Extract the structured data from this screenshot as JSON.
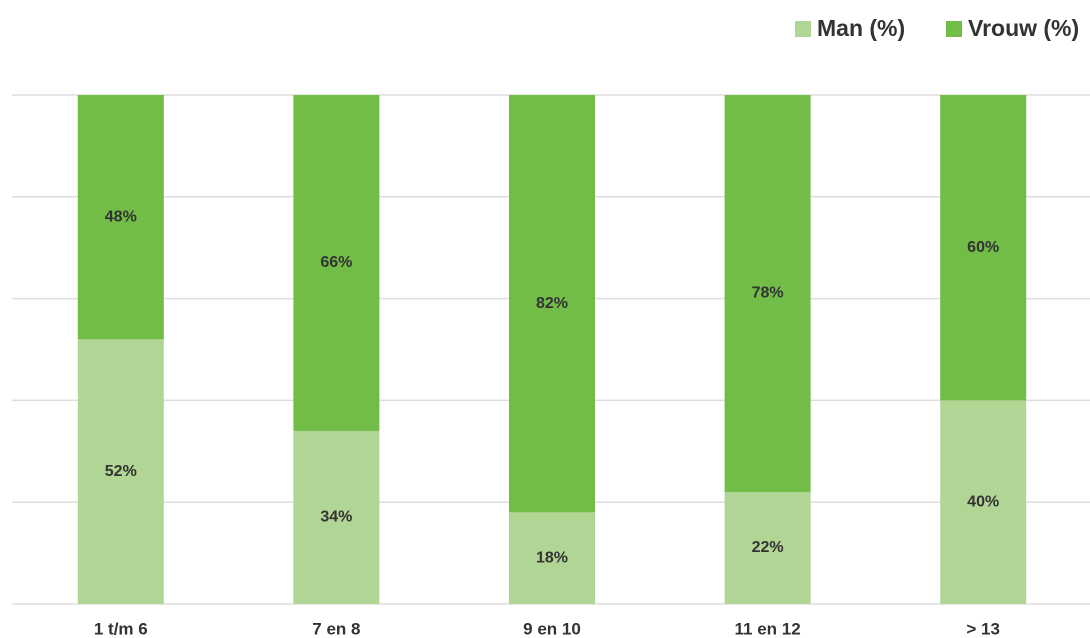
{
  "chart_data": {
    "type": "stacked_bar",
    "categories": [
      "1 t/m 6",
      "7 en 8",
      "9 en 10",
      "11 en 12",
      "> 13"
    ],
    "series": [
      {
        "name": "Man (%)",
        "color": "#b1d595",
        "values": [
          52,
          34,
          18,
          22,
          40
        ],
        "value_labels": [
          "52%",
          "34%",
          "18%",
          "22%",
          "40%"
        ]
      },
      {
        "name": "Vrouw (%)",
        "color": "#71bd48",
        "values": [
          48,
          66,
          82,
          78,
          60
        ],
        "value_labels": [
          "48%",
          "66%",
          "82%",
          "78%",
          "60%"
        ]
      }
    ],
    "ylim": [
      0,
      100
    ],
    "yticks": [
      0,
      20,
      40,
      60,
      80,
      100
    ],
    "grid": true,
    "legend": "top-right"
  }
}
